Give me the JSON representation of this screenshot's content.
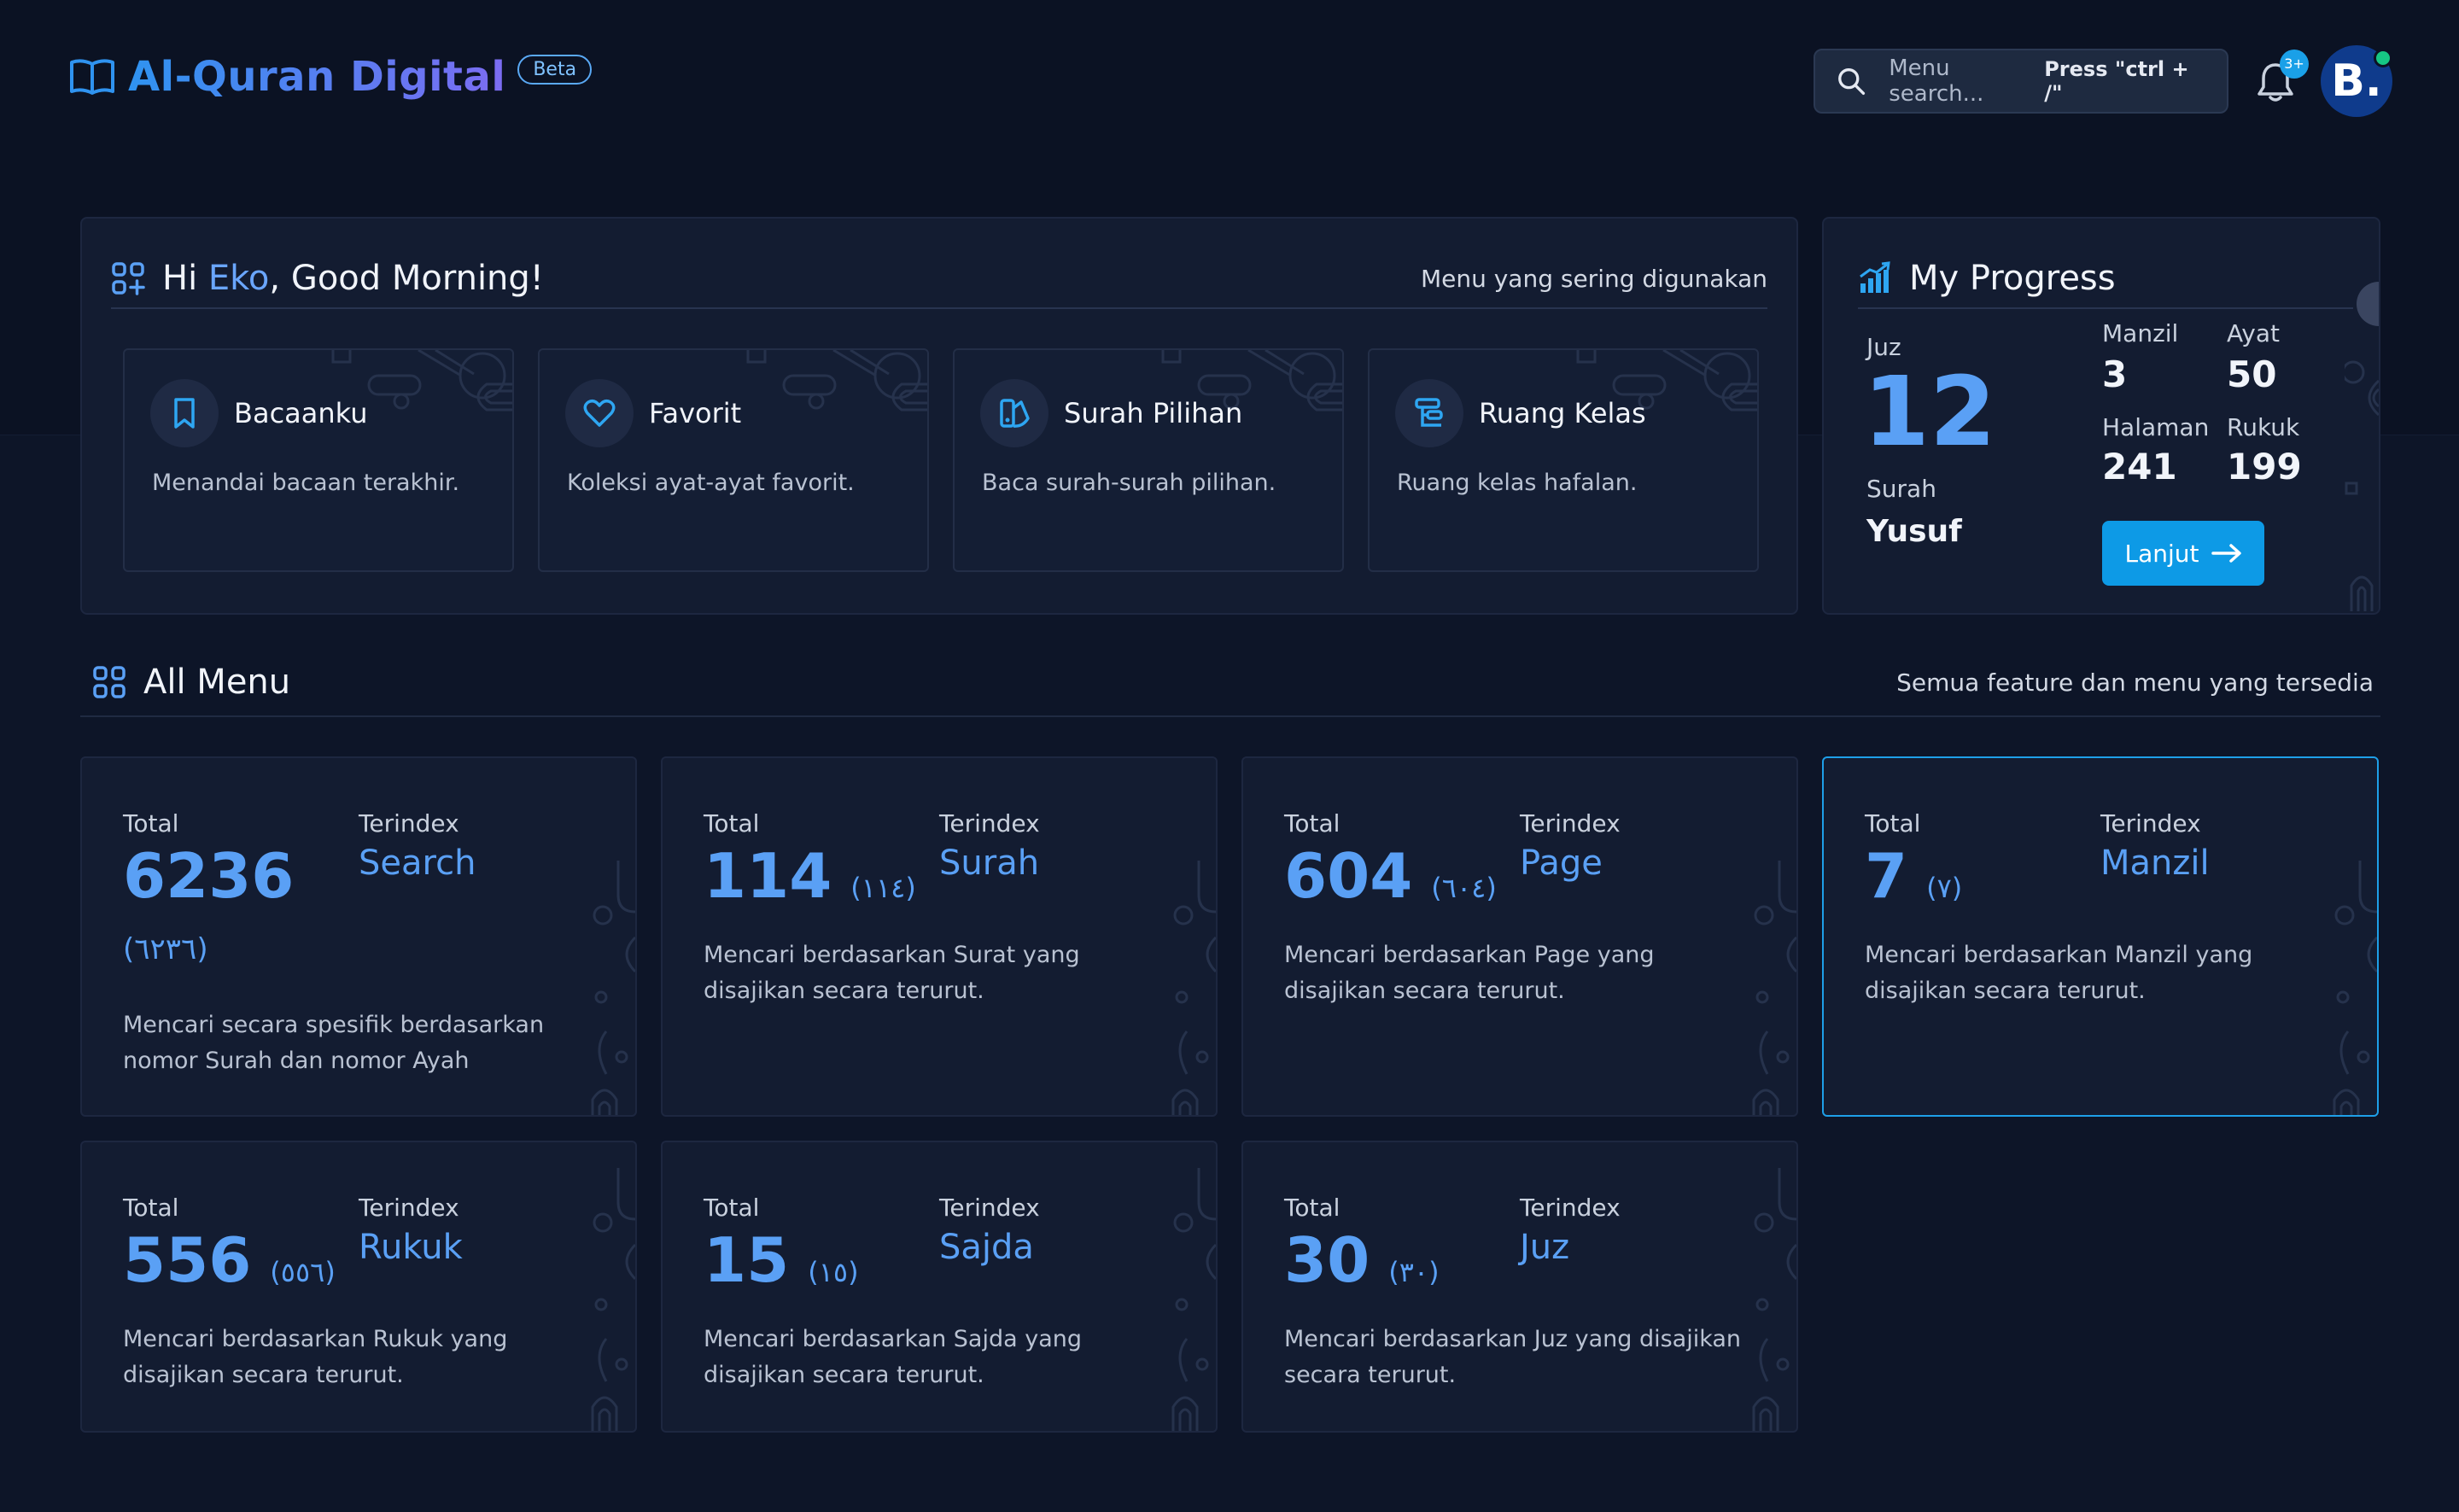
{
  "app": {
    "title": "Al-Quran Digital",
    "badge": "Beta"
  },
  "search": {
    "placeholder": "Menu search...",
    "shortcut": "Press \"ctrl + /\""
  },
  "notifications": {
    "count": "3+"
  },
  "user": {
    "initial": "B."
  },
  "greeting": {
    "prefix": "Hi ",
    "name": "Eko",
    "suffix": ", Good Morning!",
    "subtitle": "Menu yang sering digunakan",
    "quick_menu": [
      {
        "title": "Bacaanku",
        "desc": "Menandai bacaan terakhir.",
        "icon": "bookmark-icon"
      },
      {
        "title": "Favorit",
        "desc": "Koleksi ayat-ayat favorit.",
        "icon": "heart-icon"
      },
      {
        "title": "Surah Pilihan",
        "desc": "Baca surah-surah pilihan.",
        "icon": "book-select-icon"
      },
      {
        "title": "Ruang Kelas",
        "desc": "Ruang kelas hafalan.",
        "icon": "classroom-icon"
      }
    ]
  },
  "progress": {
    "title": "My Progress",
    "juz_label": "Juz",
    "juz_value": "12",
    "surah_label": "Surah",
    "surah_value": "Yusuf",
    "manzil_label": "Manzil",
    "manzil_value": "3",
    "ayat_label": "Ayat",
    "ayat_value": "50",
    "halaman_label": "Halaman",
    "halaman_value": "241",
    "rukuk_label": "Rukuk",
    "rukuk_value": "199",
    "button_label": "Lanjut"
  },
  "all_menu": {
    "title": "All Menu",
    "subtitle": "Semua feature dan menu yang tersedia",
    "total_label": "Total",
    "index_label": "Terindex",
    "items": [
      {
        "total": "6236",
        "arabic": "(٦٢٣٦)",
        "index": "Search",
        "desc": "Mencari secara spesifik berdasarkan nomor Surah dan nomor Ayah"
      },
      {
        "total": "114",
        "arabic": "(١١٤)",
        "index": "Surah",
        "desc": "Mencari berdasarkan Surat yang disajikan secara terurut."
      },
      {
        "total": "604",
        "arabic": "(٦٠٤)",
        "index": "Page",
        "desc": "Mencari berdasarkan Page yang disajikan secara terurut."
      },
      {
        "total": "7",
        "arabic": "(٧)",
        "index": "Manzil",
        "desc": "Mencari berdasarkan Manzil yang disajikan secara terurut."
      },
      {
        "total": "556",
        "arabic": "(٥٥٦)",
        "index": "Rukuk",
        "desc": "Mencari berdasarkan Rukuk yang disajikan secara terurut."
      },
      {
        "total": "15",
        "arabic": "(١٥)",
        "index": "Sajda",
        "desc": "Mencari berdasarkan Sajda yang disajikan secara terurut."
      },
      {
        "total": "30",
        "arabic": "(٣٠)",
        "index": "Juz",
        "desc": "Mencari berdasarkan Juz yang disajikan secara terurut."
      }
    ]
  },
  "colors": {
    "accent": "#5aa0f5",
    "button": "#0d9ae6",
    "background": "#0d1528",
    "panel": "#131c31"
  }
}
